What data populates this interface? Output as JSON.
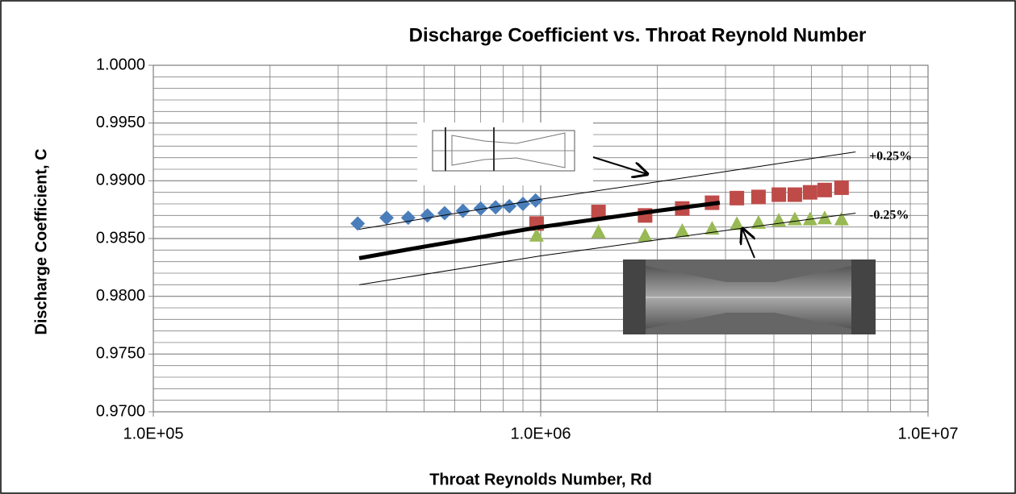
{
  "chart_data": {
    "type": "scatter",
    "title": "Discharge Coefficient vs. Throat Reynold Number",
    "x_label": "Throat Reynolds Number, Rd",
    "y_label": "Discharge Coefficient, C",
    "xscale": "log",
    "xlim": [
      100000,
      10000000
    ],
    "xticks": [
      {
        "value": 100000,
        "label": "1.0E+05"
      },
      {
        "value": 1000000,
        "label": "1.0E+06"
      },
      {
        "value": 10000000,
        "label": "1.0E+07"
      }
    ],
    "ylim": [
      0.97,
      1.0
    ],
    "yticks": [
      {
        "value": 0.97,
        "label": "0.9700"
      },
      {
        "value": 0.975,
        "label": "0.9750"
      },
      {
        "value": 0.98,
        "label": "0.9800"
      },
      {
        "value": 0.985,
        "label": "0.9850"
      },
      {
        "value": 0.99,
        "label": "0.9900"
      },
      {
        "value": 0.995,
        "label": "0.9950"
      },
      {
        "value": 1.0,
        "label": "1.0000"
      }
    ],
    "grid": true,
    "series": [
      {
        "marker": "diamond",
        "color": "#4a7ebb",
        "x": [
          337000,
          400000,
          455000,
          510000,
          565000,
          630000,
          700000,
          765000,
          830000,
          900000,
          970000
        ],
        "values": [
          0.9863,
          0.9868,
          0.9868,
          0.987,
          0.9872,
          0.9874,
          0.9876,
          0.9877,
          0.9878,
          0.988,
          0.9883
        ]
      },
      {
        "marker": "square",
        "color": "#be4b48",
        "x": [
          976000,
          1410000,
          1860000,
          2320000,
          2770000,
          3210000,
          3650000,
          4120000,
          4530000,
          4960000,
          5410000,
          5980000
        ],
        "values": [
          0.9863,
          0.9873,
          0.987,
          0.9876,
          0.9881,
          0.9885,
          0.9886,
          0.9888,
          0.9888,
          0.989,
          0.9892,
          0.9894
        ]
      },
      {
        "marker": "triangle",
        "color": "#98b954",
        "x": [
          976000,
          1410000,
          1860000,
          2320000,
          2770000,
          3210000,
          3650000,
          4120000,
          4530000,
          4960000,
          5410000,
          5980000
        ],
        "values": [
          0.9853,
          0.9856,
          0.9853,
          0.9857,
          0.9859,
          0.9863,
          0.9864,
          0.9866,
          0.9867,
          0.9867,
          0.9868,
          0.9867
        ]
      },
      {
        "marker": "line",
        "color": "#000000",
        "width": 5,
        "x": [
          340000,
          500000,
          1000000,
          2000000,
          2900000
        ],
        "values": [
          0.9833,
          0.9843,
          0.986,
          0.9874,
          0.9881
        ]
      },
      {
        "marker": "line",
        "color": "#000000",
        "width": 1,
        "x": [
          340000,
          1000000,
          3000000,
          6500000
        ],
        "values": [
          0.9858,
          0.9884,
          0.9908,
          0.9925
        ]
      },
      {
        "marker": "line",
        "color": "#000000",
        "width": 1,
        "x": [
          340000,
          1000000,
          3000000,
          6500000
        ],
        "values": [
          0.981,
          0.9835,
          0.9857,
          0.9872
        ]
      }
    ],
    "annotations": [
      "+0.25%",
      "-0.25%"
    ]
  }
}
